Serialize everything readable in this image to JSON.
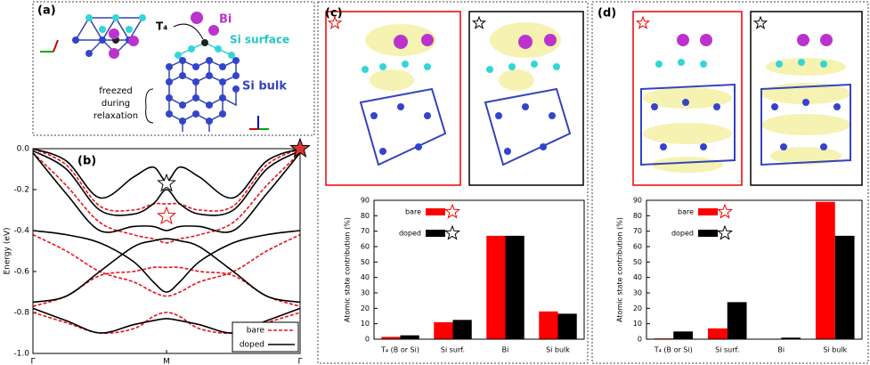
{
  "panel_a": {
    "label": "(a)",
    "bi": "Bi",
    "t4": "T₄",
    "si_surface": "Si surface",
    "si_bulk": "Si bulk",
    "freezed": [
      "freezed",
      "during",
      "relaxation"
    ]
  },
  "chart_data": [
    {
      "type": "line",
      "label": "(b)",
      "y_label": "Energy (eV)",
      "x": [
        0,
        0.25,
        0.5,
        0.75,
        0.9,
        1,
        1.1,
        1.25,
        1.5,
        1.75,
        2
      ],
      "xlim": [
        0,
        2
      ],
      "xticks": [
        {
          "value": 0,
          "label": "Γ"
        },
        {
          "value": 1,
          "label": "M"
        },
        {
          "value": 2,
          "label": "Γ"
        }
      ],
      "ylim": [
        -1.0,
        0.0
      ],
      "yticks": [
        {
          "value": -1.0,
          "label": "-1.0"
        },
        -0.8,
        -0.6,
        -0.4,
        -0.2,
        {
          "value": 0.0,
          "label": "0.0"
        }
      ],
      "legend": "lower right",
      "series": [
        {
          "name": "bare",
          "color": "#e8141c",
          "dashed": true,
          "bands": [
            [
              0,
              -0.08,
              -0.28,
              -0.3,
              -0.27,
              -0.27,
              -0.27,
              -0.3,
              -0.28,
              -0.08,
              0
            ],
            [
              -0.02,
              -0.18,
              -0.36,
              -0.42,
              -0.44,
              -0.46,
              -0.44,
              -0.42,
              -0.36,
              -0.18,
              -0.02
            ],
            [
              -0.42,
              -0.5,
              -0.6,
              -0.65,
              -0.7,
              -0.72,
              -0.7,
              -0.65,
              -0.6,
              -0.5,
              -0.42
            ],
            [
              -0.77,
              -0.72,
              -0.62,
              -0.6,
              -0.58,
              -0.58,
              -0.58,
              -0.6,
              -0.62,
              -0.72,
              -0.77
            ],
            [
              -0.8,
              -0.85,
              -0.9,
              -0.88,
              -0.82,
              -0.8,
              -0.82,
              -0.88,
              -0.9,
              -0.85,
              -0.8
            ]
          ]
        },
        {
          "name": "doped",
          "color": "#000000",
          "dashed": false,
          "bands": [
            [
              0,
              -0.06,
              -0.24,
              -0.14,
              -0.09,
              -0.16,
              -0.09,
              -0.14,
              -0.24,
              -0.06,
              0
            ],
            [
              -0.01,
              -0.1,
              -0.3,
              -0.32,
              -0.27,
              -0.2,
              -0.27,
              -0.32,
              -0.3,
              -0.1,
              -0.01
            ],
            [
              -0.02,
              -0.22,
              -0.4,
              -0.38,
              -0.38,
              -0.4,
              -0.38,
              -0.38,
              -0.4,
              -0.22,
              -0.02
            ],
            [
              -0.4,
              -0.42,
              -0.46,
              -0.55,
              -0.65,
              -0.7,
              -0.65,
              -0.55,
              -0.46,
              -0.42,
              -0.4
            ],
            [
              -0.75,
              -0.72,
              -0.6,
              -0.48,
              -0.45,
              -0.44,
              -0.45,
              -0.48,
              -0.6,
              -0.72,
              -0.75
            ],
            [
              -0.78,
              -0.84,
              -0.9,
              -0.86,
              -0.84,
              -0.83,
              -0.84,
              -0.86,
              -0.9,
              -0.84,
              -0.78
            ]
          ]
        }
      ]
    },
    {
      "type": "bar",
      "label": "(c)",
      "y_label": "Atomic state contribution (%)",
      "categories": [
        "T₄ (B or Si)",
        "Si surf.",
        "Bi",
        "Si bulk"
      ],
      "ylim": [
        0,
        90
      ],
      "yticks": [
        0,
        10,
        20,
        30,
        40,
        50,
        60,
        70,
        80,
        90
      ],
      "series": [
        {
          "name": "bare",
          "color": "#ff0000",
          "values": [
            1.5,
            11,
            67,
            18
          ]
        },
        {
          "name": "doped",
          "color": "#000000",
          "values": [
            2.5,
            12.5,
            67,
            16.5
          ]
        }
      ]
    },
    {
      "type": "bar",
      "label": "(d)",
      "y_label": "Atomic state contribution (%)",
      "categories": [
        "T₄ (B or Si)",
        "Si surf.",
        "Bi",
        "Si bulk"
      ],
      "ylim": [
        0,
        90
      ],
      "yticks": [
        0,
        10,
        20,
        30,
        40,
        50,
        60,
        70,
        80,
        90
      ],
      "series": [
        {
          "name": "bare",
          "color": "#ff0000",
          "values": [
            0.5,
            7,
            0.3,
            89
          ]
        },
        {
          "name": "doped",
          "color": "#000000",
          "values": [
            5,
            24,
            1,
            67
          ]
        }
      ]
    }
  ]
}
